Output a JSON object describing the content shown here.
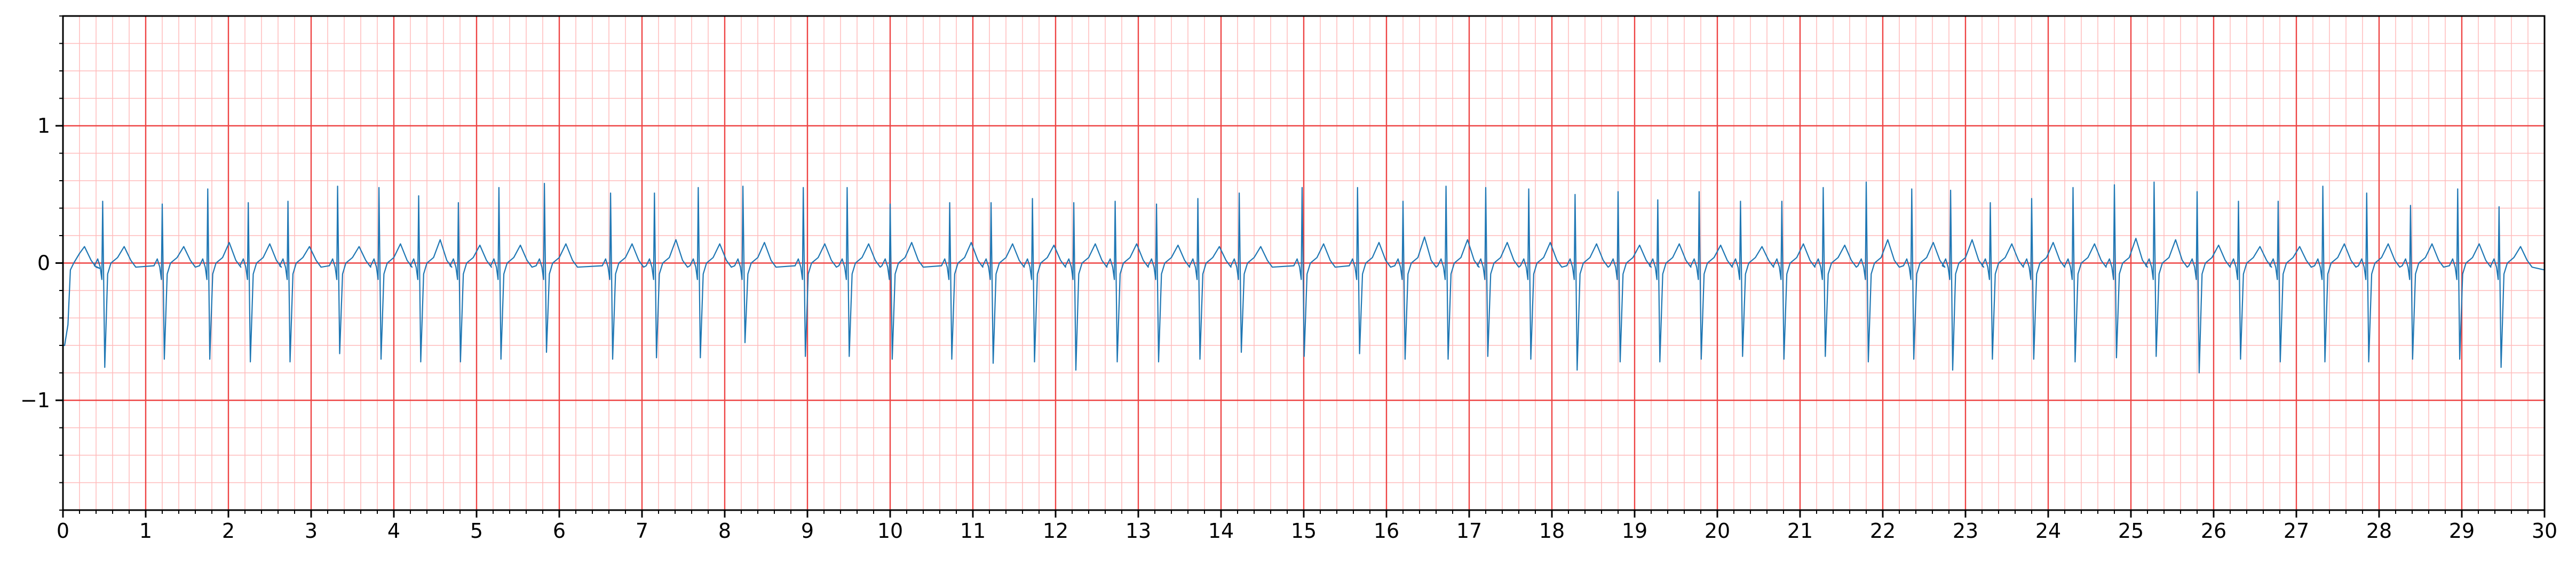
{
  "chart_data": {
    "type": "line",
    "title": "",
    "xlabel": "",
    "ylabel": "",
    "xlim": [
      0,
      30
    ],
    "ylim": [
      -1.8,
      1.8
    ],
    "x_ticks": [
      0,
      1,
      2,
      3,
      4,
      5,
      6,
      7,
      8,
      9,
      10,
      11,
      12,
      13,
      14,
      15,
      16,
      17,
      18,
      19,
      20,
      21,
      22,
      23,
      24,
      25,
      26,
      27,
      28,
      29,
      30
    ],
    "x_tick_labels": [
      "0",
      "1",
      "2",
      "3",
      "4",
      "5",
      "6",
      "7",
      "8",
      "9",
      "10",
      "11",
      "12",
      "13",
      "14",
      "15",
      "16",
      "17",
      "18",
      "19",
      "20",
      "21",
      "22",
      "23",
      "24",
      "25",
      "26",
      "27",
      "28",
      "29",
      "30"
    ],
    "y_ticks": [
      -1,
      0,
      1
    ],
    "y_tick_labels": [
      "−1",
      "0",
      "1"
    ],
    "grid": {
      "major": true,
      "major_x_step": 1,
      "major_y_step": 1,
      "minor": true,
      "minor_x_step": 0.2,
      "minor_y_step": 0.2
    },
    "colors": {
      "signal": "#1f77b4",
      "major_grid": "#ee4444",
      "minor_grid": "#ffbbbb",
      "axes": "#000000"
    },
    "series": [
      {
        "beats_start_s": [
          0.02,
          0.48,
          1.2,
          1.75,
          2.24,
          2.72,
          3.32,
          3.82,
          4.3,
          4.78,
          5.27,
          5.82,
          6.62,
          7.15,
          7.68,
          8.22,
          8.95,
          9.48,
          10.0,
          10.72,
          11.22,
          11.72,
          12.22,
          12.72,
          13.22,
          13.72,
          14.22,
          14.98,
          15.65,
          16.2,
          16.72,
          17.2,
          17.72,
          18.28,
          18.8,
          19.28,
          19.78,
          20.28,
          20.78,
          21.28,
          21.8,
          22.35,
          22.82,
          23.3,
          23.8,
          24.3,
          24.8,
          25.28,
          25.8,
          26.3,
          26.78,
          27.32,
          27.85,
          28.38,
          28.95,
          29.45
        ],
        "r_peak": [
          -0.6,
          0.45,
          0.43,
          0.54,
          0.44,
          0.45,
          0.56,
          0.55,
          0.49,
          0.44,
          0.55,
          0.58,
          0.51,
          0.51,
          0.55,
          0.56,
          0.55,
          0.55,
          0.43,
          0.44,
          0.44,
          0.47,
          0.44,
          0.45,
          0.43,
          0.47,
          0.51,
          0.55,
          0.55,
          0.45,
          0.56,
          0.55,
          0.54,
          0.5,
          0.52,
          0.46,
          0.52,
          0.45,
          0.45,
          0.55,
          0.59,
          0.54,
          0.53,
          0.44,
          0.47,
          0.55,
          0.57,
          0.59,
          0.52,
          0.45,
          0.45,
          0.56,
          0.51,
          0.42,
          0.54,
          0.41
        ],
        "s_trough": [
          -0.6,
          -0.76,
          -0.7,
          -0.7,
          -0.72,
          -0.72,
          -0.66,
          -0.7,
          -0.72,
          -0.72,
          -0.7,
          -0.65,
          -0.7,
          -0.69,
          -0.69,
          -0.58,
          -0.68,
          -0.68,
          -0.7,
          -0.7,
          -0.73,
          -0.72,
          -0.78,
          -0.72,
          -0.72,
          -0.7,
          -0.65,
          -0.68,
          -0.66,
          -0.7,
          -0.7,
          -0.68,
          -0.7,
          -0.78,
          -0.72,
          -0.72,
          -0.7,
          -0.68,
          -0.7,
          -0.68,
          -0.72,
          -0.7,
          -0.78,
          -0.7,
          -0.7,
          -0.72,
          -0.69,
          -0.68,
          -0.8,
          -0.7,
          -0.72,
          -0.72,
          -0.72,
          -0.7,
          -0.7,
          -0.76
        ],
        "t_peak": [
          0.12,
          0.12,
          0.12,
          0.15,
          0.14,
          0.12,
          0.12,
          0.14,
          0.17,
          0.13,
          0.13,
          0.14,
          0.14,
          0.17,
          0.14,
          0.15,
          0.14,
          0.14,
          0.15,
          0.15,
          0.14,
          0.13,
          0.14,
          0.14,
          0.13,
          0.12,
          0.12,
          0.14,
          0.15,
          0.19,
          0.17,
          0.15,
          0.15,
          0.14,
          0.13,
          0.14,
          0.13,
          0.12,
          0.14,
          0.13,
          0.17,
          0.15,
          0.17,
          0.14,
          0.15,
          0.14,
          0.18,
          0.17,
          0.13,
          0.12,
          0.12,
          0.14,
          0.14,
          0.14,
          0.14,
          0.12
        ],
        "final_value": -0.05
      }
    ]
  }
}
